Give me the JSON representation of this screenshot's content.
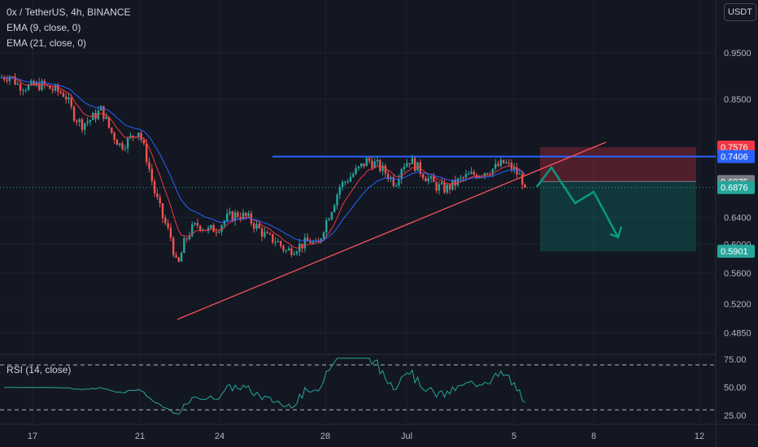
{
  "header": {
    "title": "0x / TetherUS, 4h, BINANCE",
    "ema9": "EMA (9, close, 0)",
    "ema21": "EMA (21, close, 0)",
    "rsi": "RSI (14, close)",
    "currency": "USDT"
  },
  "colors": {
    "background": "#131722",
    "up_candle": "#26a69a",
    "down_candle": "#ef5350",
    "ema9": "#f23645",
    "ema21": "#2962ff",
    "resistance": "#2962ff",
    "trendline": "#f7525f",
    "rsi": "#26a69a",
    "stop_zone": "#f23645",
    "target_zone": "#089981"
  },
  "chart_data": {
    "type": "candlestick",
    "title": "0x / TetherUS, 4h, BINANCE",
    "price_axis": {
      "ticks": [
        "0.9500",
        "0.8500",
        "0.6400",
        "0.6000",
        "0.5600",
        "0.5200",
        "0.4850"
      ],
      "ylim": [
        0.47,
        1.0
      ],
      "scale": "log"
    },
    "time_axis": {
      "ticks": [
        "17",
        "21",
        "24",
        "28",
        "Jul",
        "5",
        "8",
        "12"
      ]
    },
    "price_tags": [
      {
        "label": "0.7576",
        "value": 0.7576,
        "color": "#f23645"
      },
      {
        "label": "0.7406",
        "value": 0.7406,
        "color": "#2962ff"
      },
      {
        "label": "0.6975",
        "value": 0.6975,
        "color": "#787b86"
      },
      {
        "label": "0.6876",
        "value": 0.6876,
        "color": "#26a69a"
      },
      {
        "label": "0.5901",
        "value": 0.5901,
        "color": "#26a69a"
      }
    ],
    "resistance_level": 0.7406,
    "last_close": 0.6876,
    "rsi_panel": {
      "ticks": [
        "75.00",
        "50.00",
        "25.00"
      ],
      "levels": [
        70,
        30
      ],
      "ylim": [
        20,
        78
      ]
    },
    "series": [
      {
        "name": "EMA (9, close, 0)"
      },
      {
        "name": "EMA (21, close, 0)"
      }
    ]
  }
}
